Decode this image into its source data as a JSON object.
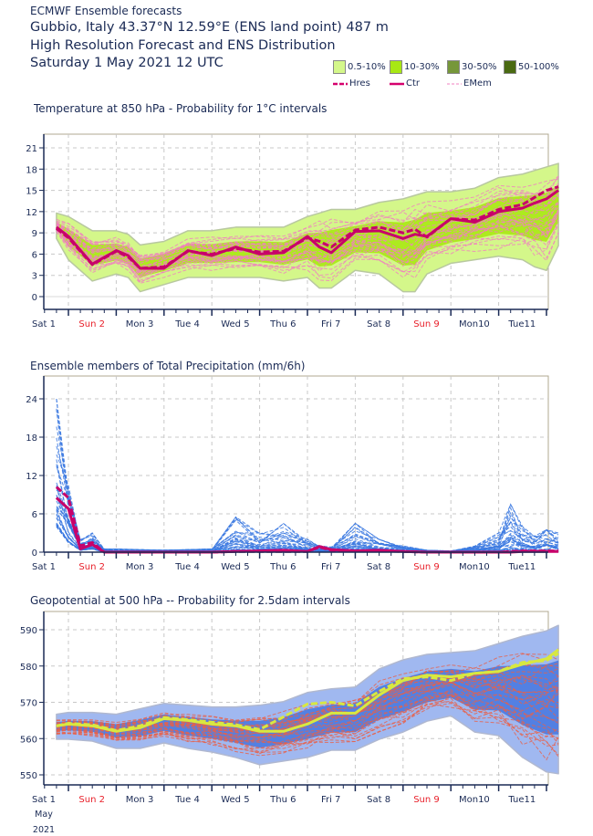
{
  "header": {
    "source": "ECMWF Ensemble forecasts",
    "location": "Gubbio, Italy 43.37°N 12.59°E (ENS land point) 487 m",
    "product": "High Resolution Forecast and ENS Distribution",
    "date": "Saturday  1 May 2021 12 UTC"
  },
  "legend": {
    "bands": [
      {
        "label": "0.5-10%",
        "color": "#d4f78a"
      },
      {
        "label": "10-30%",
        "color": "#a8e813"
      },
      {
        "label": "30-50%",
        "color": "#76973a"
      },
      {
        "label": "50-100%",
        "color": "#4a6a12"
      }
    ],
    "lines": [
      {
        "label": "Hres",
        "style": "dashed-thick",
        "color": "#d5006d"
      },
      {
        "label": "Ctr",
        "style": "solid-thick",
        "color": "#d5006d"
      },
      {
        "label": "EMem",
        "style": "dashed-thin",
        "color": "#f080c0"
      }
    ]
  },
  "x_axis": {
    "day_labels": [
      "Sat 1",
      "Sun 2",
      "Mon 3",
      "Tue 4",
      "Wed 5",
      "Thu 6",
      "Fri 7",
      "Sat 8",
      "Sun 9",
      "Mon10",
      "Tue11"
    ],
    "sunday_color": "#e8202a",
    "weekday_color": "#1a2a55",
    "month_label": "May",
    "year_label": "2021"
  },
  "chart_data": [
    {
      "type": "area",
      "title": "Temperature at 850 hPa - Probability for 1°C intervals",
      "ylabel": "°C",
      "yticks": [
        0,
        3,
        6,
        9,
        12,
        15,
        18,
        21
      ],
      "ylim": [
        -2,
        23
      ],
      "grid": true,
      "x_hours_from_sat1_00utc": [
        18,
        24,
        36,
        48,
        54,
        60,
        72,
        84,
        96,
        108,
        120,
        132,
        144,
        150,
        156,
        168,
        180,
        192,
        198,
        204,
        216,
        228,
        240,
        252,
        258,
        264,
        270
      ],
      "series": [
        {
          "name": "Ctr",
          "values": [
            9.8,
            8.5,
            4.6,
            6.5,
            5.8,
            4.0,
            4.0,
            6.5,
            5.8,
            7.0,
            6.0,
            6.2,
            8.5,
            7.0,
            6.2,
            9.2,
            9.3,
            8.2,
            8.8,
            8.5,
            11.0,
            10.5,
            12.0,
            12.5,
            13.2,
            13.8,
            15.0
          ],
          "color": "#c8006a"
        },
        {
          "name": "Hres",
          "values": [
            9.6,
            8.3,
            4.5,
            6.4,
            5.6,
            4.0,
            4.2,
            6.4,
            6.0,
            6.8,
            6.3,
            6.4,
            8.3,
            7.8,
            7.0,
            9.4,
            9.8,
            9.0,
            9.5,
            8.4,
            11.0,
            10.8,
            12.3,
            13.0,
            14.0,
            15.0,
            15.5
          ],
          "color": "#c8006a"
        }
      ],
      "band_low": [
        9.0,
        6.0,
        3.0,
        4.0,
        3.5,
        1.5,
        2.5,
        3.5,
        3.5,
        3.5,
        3.5,
        3.0,
        3.5,
        2.0,
        2.0,
        4.5,
        4.0,
        1.5,
        1.5,
        4.0,
        5.5,
        6.0,
        6.5,
        6.0,
        5.0,
        4.5,
        8.0
      ],
      "band_high": [
        11.0,
        10.5,
        8.5,
        8.5,
        8.0,
        6.5,
        7.0,
        8.5,
        8.5,
        9.0,
        9.0,
        9.0,
        10.5,
        11.0,
        11.5,
        11.5,
        12.5,
        13.0,
        13.5,
        14.0,
        14.0,
        14.5,
        16.0,
        16.5,
        17.0,
        17.5,
        18.0
      ]
    },
    {
      "type": "line",
      "title": "Ensemble members of Total Precipitation (mm/6h)",
      "ylabel": "mm/6h",
      "yticks": [
        0,
        6,
        12,
        18,
        24
      ],
      "ylim": [
        -1,
        27
      ],
      "grid": true,
      "x_hours_from_sat1_00utc": [
        18,
        24,
        30,
        36,
        42,
        48,
        72,
        96,
        108,
        120,
        132,
        144,
        150,
        156,
        168,
        180,
        192,
        204,
        216,
        228,
        240,
        246,
        252,
        258,
        264,
        270
      ],
      "series": [
        {
          "name": "Hres",
          "values": [
            10.2,
            8.5,
            1.0,
            1.5,
            0.0,
            0.0,
            0.0,
            0.0,
            0.1,
            0.1,
            0.1,
            0.1,
            0.8,
            0.3,
            0.2,
            0.2,
            0.1,
            0.0,
            0.0,
            0.0,
            0.0,
            0.1,
            0.2,
            0.2,
            0.2,
            0.2
          ],
          "color": "#c8006a"
        },
        {
          "name": "Ctr",
          "values": [
            8.5,
            6.8,
            0.5,
            1.2,
            0.0,
            0.0,
            0.0,
            0.0,
            0.1,
            0.2,
            0.3,
            0.1,
            0.9,
            0.4,
            0.2,
            0.3,
            0.1,
            0.0,
            0.0,
            0.0,
            0.0,
            0.0,
            0.1,
            0.1,
            0.1,
            0.1
          ],
          "color": "#c8006a"
        },
        {
          "name": "EMem-max",
          "values": [
            24.0,
            12.0,
            2.0,
            3.0,
            0.5,
            0.5,
            0.3,
            0.5,
            5.5,
            3.0,
            4.5,
            2.0,
            1.0,
            0.8,
            4.5,
            2.0,
            1.0,
            0.3,
            0.2,
            1.0,
            3.0,
            7.5,
            4.0,
            2.5,
            3.5,
            3.0
          ],
          "color": "#3a78e0"
        },
        {
          "name": "EMem-typical",
          "values": [
            16.0,
            9.0,
            1.5,
            2.0,
            0.3,
            0.2,
            0.1,
            0.2,
            2.0,
            1.5,
            2.0,
            0.8,
            0.5,
            0.5,
            2.5,
            1.0,
            0.5,
            0.1,
            0.1,
            0.3,
            1.0,
            3.0,
            2.0,
            1.0,
            1.5,
            1.2
          ],
          "color": "#3a78e0"
        },
        {
          "name": "EMem-min",
          "values": [
            4.0,
            1.5,
            0.3,
            0.5,
            0.0,
            0.0,
            0.0,
            0.0,
            0.0,
            0.0,
            0.0,
            0.0,
            0.0,
            0.0,
            0.0,
            0.0,
            0.0,
            0.0,
            0.0,
            0.0,
            0.0,
            0.0,
            0.0,
            0.0,
            0.0,
            0.0
          ],
          "color": "#3a78e0"
        }
      ]
    },
    {
      "type": "area",
      "title": "Geopotential at 500 hPa -- Probability for 2.5dam intervals",
      "ylabel": "dam",
      "yticks": [
        550,
        560,
        570,
        580,
        590
      ],
      "ylim": [
        547,
        595
      ],
      "grid": true,
      "x_hours_from_sat1_00utc": [
        18,
        24,
        36,
        48,
        60,
        72,
        84,
        96,
        108,
        120,
        132,
        144,
        156,
        168,
        180,
        192,
        204,
        216,
        228,
        240,
        252,
        264,
        270
      ],
      "series": [
        {
          "name": "Ctr",
          "values": [
            563.5,
            564.0,
            563.5,
            562.0,
            563.0,
            565.5,
            565.0,
            564.0,
            563.5,
            562.0,
            562.0,
            564.0,
            567.0,
            567.0,
            572.0,
            576.0,
            577.5,
            577.0,
            578.0,
            578.5,
            580.5,
            582.0,
            584.5
          ],
          "color": "#d8e840"
        },
        {
          "name": "Hres",
          "values": [
            563.5,
            564.2,
            563.8,
            562.2,
            563.5,
            565.8,
            565.2,
            564.5,
            563.8,
            562.5,
            566.0,
            569.5,
            570.0,
            569.0,
            573.0,
            576.5,
            577.0,
            576.0,
            578.0,
            578.5,
            581.0,
            581.5,
            583.5
          ],
          "color": "#d8e840"
        }
      ],
      "band_low": [
        561.0,
        561.0,
        560.5,
        558.5,
        558.5,
        560.0,
        558.5,
        557.5,
        556.0,
        554.0,
        555.0,
        556.0,
        558.0,
        558.0,
        561.0,
        563.0,
        566.0,
        567.5,
        563.0,
        562.0,
        556.0,
        552.0,
        551.5
      ],
      "band_high": [
        565.5,
        566.0,
        566.0,
        565.5,
        567.0,
        568.5,
        568.0,
        567.5,
        567.5,
        568.0,
        569.0,
        571.5,
        572.5,
        573.0,
        578.0,
        580.5,
        582.0,
        582.5,
        583.0,
        585.0,
        587.0,
        588.5,
        590.0
      ],
      "member_color": "#e86048",
      "band_colors": [
        "#a0b8f0",
        "#4a7ae0",
        "#1a2a8a"
      ]
    }
  ]
}
